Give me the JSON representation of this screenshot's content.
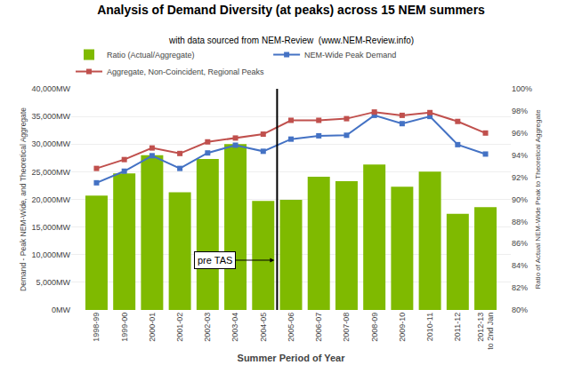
{
  "chart_data": {
    "type": "bar",
    "title": "Analysis of Demand Diversity (at peaks) across 15 NEM summers",
    "subtitle": "with data sourced from NEM-Review  (www.NEM-Review.info)",
    "xlabel": "Summer Period of Year",
    "ylabel": "Demand - Peak NEM-Wide, and Theoretical Aggregate",
    "y2label": "Ratio of Actual NEM-Wide Peak to Theoretical Aggregate",
    "categories": [
      "1998-99",
      "1999-00",
      "2000-01",
      "2001-02",
      "2002-03",
      "2003-04",
      "2004-05",
      "2005-06",
      "2006-07",
      "2007-08",
      "2008-09",
      "2009-10",
      "2010-11",
      "2011-12",
      "2012-13\nto 2nd Jan"
    ],
    "series": [
      {
        "name": "Ratio (Actual/Aggregate)",
        "type": "bar",
        "color": "#7fba00",
        "values": [
          20700,
          24700,
          28000,
          21300,
          27300,
          30000,
          19700,
          19900,
          24100,
          23300,
          26300,
          22300,
          25000,
          17400,
          18600
        ]
      },
      {
        "name": "NEM-Wide Peak Demand",
        "type": "line",
        "color": "#4472c4",
        "marker": "square",
        "values": [
          23000,
          25100,
          27900,
          25600,
          28400,
          29800,
          28700,
          30900,
          31500,
          31600,
          35200,
          33700,
          35000,
          29900,
          28200
        ]
      },
      {
        "name": "Aggregate, Non-Coincident, Regional Peaks",
        "type": "line",
        "color": "#c0504d",
        "marker": "square",
        "values": [
          25600,
          27200,
          29300,
          28300,
          30400,
          31100,
          31800,
          34300,
          34300,
          34600,
          35800,
          35200,
          35700,
          34100,
          32000
        ]
      }
    ],
    "ylim": [
      0,
      40000
    ],
    "yticks": [
      {
        "value": 0,
        "label": "0MW"
      },
      {
        "value": 5000,
        "label": "5,000MW"
      },
      {
        "value": 10000,
        "label": "10,000MW"
      },
      {
        "value": 15000,
        "label": "15,000MW"
      },
      {
        "value": 20000,
        "label": "20,000MW"
      },
      {
        "value": 25000,
        "label": "25,000MW"
      },
      {
        "value": 30000,
        "label": "30,000MW"
      },
      {
        "value": 35000,
        "label": "35,000MW"
      },
      {
        "value": 40000,
        "label": "40,000MW"
      }
    ],
    "y2lim": [
      0.8,
      1.0
    ],
    "y2ticks": [
      {
        "value": 0.8,
        "label": "80%"
      },
      {
        "value": 0.82,
        "label": "82%"
      },
      {
        "value": 0.84,
        "label": "84%"
      },
      {
        "value": 0.86,
        "label": "86%"
      },
      {
        "value": 0.88,
        "label": "88%"
      },
      {
        "value": 0.9,
        "label": "90%"
      },
      {
        "value": 0.92,
        "label": "92%"
      },
      {
        "value": 0.94,
        "label": "94%"
      },
      {
        "value": 0.96,
        "label": "96%"
      },
      {
        "value": 0.98,
        "label": "98%"
      },
      {
        "value": 1.0,
        "label": "100%"
      }
    ],
    "grid": true,
    "legend": "top",
    "annotations": [
      {
        "text": "pre TAS",
        "y": 9000
      }
    ],
    "vline_after": "2004-05"
  }
}
